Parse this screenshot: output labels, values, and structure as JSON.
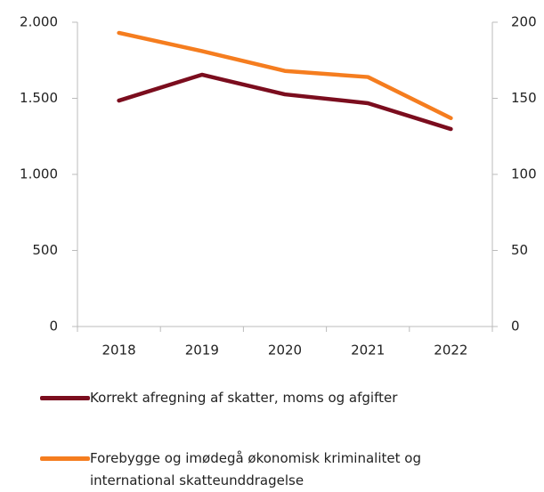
{
  "chart_data": {
    "type": "line",
    "categories": [
      "2018",
      "2019",
      "2020",
      "2021",
      "2022"
    ],
    "series": [
      {
        "name": "Korrekt afregning af skatter, moms og afgifter",
        "color": "#7b0d1e",
        "values": [
          1485,
          1655,
          1526,
          1468,
          1298
        ]
      },
      {
        "name": "Forebygge og imødegå økonomisk kriminalitet og international skatteunddragelse",
        "color": "#f57d1f",
        "values": [
          193,
          181,
          168,
          164,
          137
        ],
        "axis": "y2"
      }
    ],
    "ylim": [
      0,
      2000
    ],
    "yticks": [
      0,
      500,
      {
        "value": 1000,
        "label": "1.000"
      },
      {
        "value": 1500,
        "label": "1.500"
      },
      {
        "value": 2000,
        "label": "2.000"
      }
    ],
    "y2lim": [
      0,
      200
    ],
    "y2ticks": [
      0,
      50,
      100,
      150,
      200
    ]
  }
}
